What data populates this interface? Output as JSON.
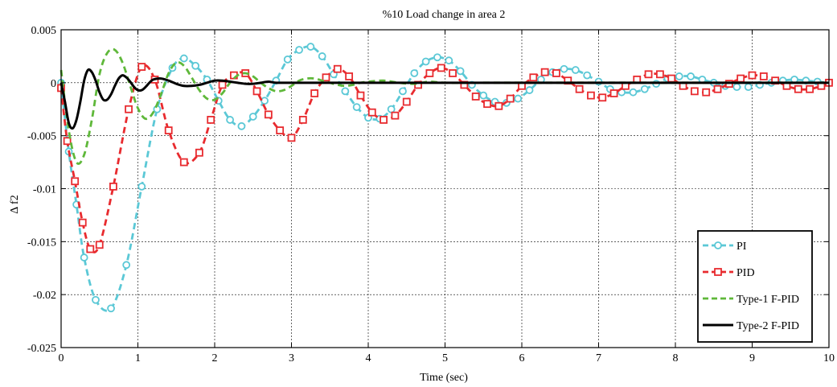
{
  "chart_data": {
    "type": "line",
    "title": "%10 Load change in area 2",
    "xlabel": "Time (sec)",
    "ylabel": "Δ f2",
    "xlim": [
      0,
      10
    ],
    "ylim": [
      -0.025,
      0.005
    ],
    "grid": true,
    "legend_position": "bottom-right",
    "x_ticks": [
      0,
      1,
      2,
      3,
      4,
      5,
      6,
      7,
      8,
      9,
      10
    ],
    "x_tick_labels": [
      "0",
      "1",
      "2",
      "3",
      "4",
      "5",
      "6",
      "7",
      "8",
      "9",
      "10"
    ],
    "y_ticks": [
      0.005,
      0,
      -0.005,
      -0.01,
      -0.015,
      -0.02,
      -0.025
    ],
    "y_tick_labels": [
      "0.005",
      "0",
      "-0.005",
      "-0.01",
      "-0.015",
      "-0.02",
      "-0.025"
    ],
    "series": [
      {
        "name": "PI",
        "color": "#5bc8d6",
        "line": "dashed",
        "marker": "circle",
        "x": [
          0,
          0.1,
          0.2,
          0.3,
          0.45,
          0.65,
          0.85,
          1.05,
          1.25,
          1.45,
          1.6,
          1.75,
          1.9,
          2.05,
          2.2,
          2.35,
          2.5,
          2.65,
          2.8,
          2.95,
          3.1,
          3.25,
          3.4,
          3.55,
          3.7,
          3.85,
          4.0,
          4.15,
          4.3,
          4.45,
          4.6,
          4.75,
          4.9,
          5.05,
          5.2,
          5.35,
          5.5,
          5.65,
          5.8,
          5.95,
          6.1,
          6.25,
          6.4,
          6.55,
          6.7,
          6.85,
          7.0,
          7.15,
          7.3,
          7.45,
          7.6,
          7.75,
          7.9,
          8.05,
          8.2,
          8.35,
          8.5,
          8.65,
          8.8,
          8.95,
          9.1,
          9.25,
          9.4,
          9.55,
          9.7,
          9.85,
          10.0
        ],
        "y": [
          0,
          -0.0065,
          -0.0115,
          -0.0165,
          -0.0205,
          -0.0213,
          -0.0172,
          -0.0098,
          -0.0025,
          0.0014,
          0.0023,
          0.0016,
          0.0003,
          -0.0017,
          -0.0035,
          -0.0041,
          -0.0032,
          -0.0017,
          0.0002,
          0.0022,
          0.0031,
          0.0034,
          0.0025,
          0.0008,
          -0.0008,
          -0.0023,
          -0.0033,
          -0.0034,
          -0.0025,
          -0.0008,
          0.0009,
          0.002,
          0.0024,
          0.0021,
          0.0011,
          -0.0002,
          -0.0012,
          -0.0018,
          -0.0019,
          -0.0015,
          -0.0007,
          0.0003,
          0.001,
          0.0013,
          0.0012,
          0.0007,
          0.0001,
          -0.0006,
          -0.0009,
          -0.0009,
          -0.0006,
          -0.0001,
          0.0004,
          0.0006,
          0.0006,
          0.0003,
          0,
          -0.0003,
          -0.0004,
          -0.0004,
          -0.0002,
          0,
          0.0002,
          0.0003,
          0.0002,
          0.0001,
          0
        ]
      },
      {
        "name": "PID",
        "color": "#e82b2f",
        "line": "dashed",
        "marker": "square",
        "x": [
          0,
          0.08,
          0.18,
          0.28,
          0.38,
          0.5,
          0.68,
          0.88,
          1.05,
          1.22,
          1.4,
          1.6,
          1.8,
          1.95,
          2.1,
          2.25,
          2.4,
          2.55,
          2.7,
          2.85,
          3.0,
          3.15,
          3.3,
          3.45,
          3.6,
          3.75,
          3.9,
          4.05,
          4.2,
          4.35,
          4.5,
          4.65,
          4.8,
          4.95,
          5.1,
          5.25,
          5.4,
          5.55,
          5.7,
          5.85,
          6.0,
          6.15,
          6.3,
          6.45,
          6.6,
          6.75,
          6.9,
          7.05,
          7.2,
          7.35,
          7.5,
          7.65,
          7.8,
          7.95,
          8.1,
          8.25,
          8.4,
          8.55,
          8.7,
          8.85,
          9.0,
          9.15,
          9.3,
          9.45,
          9.6,
          9.75,
          9.9,
          10.0
        ],
        "y": [
          -0.0005,
          -0.0055,
          -0.0093,
          -0.0132,
          -0.0157,
          -0.0153,
          -0.0098,
          -0.0025,
          0.0015,
          0.0003,
          -0.0045,
          -0.0075,
          -0.0066,
          -0.0035,
          -0.0002,
          0.0007,
          0.0009,
          -0.0008,
          -0.003,
          -0.0045,
          -0.0052,
          -0.0035,
          -0.001,
          0.0005,
          0.0013,
          0.0006,
          -0.0012,
          -0.0028,
          -0.0035,
          -0.0031,
          -0.0018,
          -0.0002,
          0.0009,
          0.0014,
          0.0009,
          -0.0002,
          -0.0013,
          -0.002,
          -0.0022,
          -0.0015,
          -0.0003,
          0.0005,
          0.001,
          0.0009,
          0.0002,
          -0.0006,
          -0.0012,
          -0.0014,
          -0.001,
          -0.0003,
          0.0003,
          0.0008,
          0.0008,
          0.0004,
          -0.0003,
          -0.0008,
          -0.0009,
          -0.0006,
          -0.0001,
          0.0004,
          0.0007,
          0.0006,
          0.0002,
          -0.0003,
          -0.0006,
          -0.0006,
          -0.0003,
          0
        ]
      },
      {
        "name": "Type-1 F-PID",
        "color": "#5fb83a",
        "line": "dashed",
        "marker": "none",
        "x": [
          0,
          0.1,
          0.2,
          0.3,
          0.4,
          0.5,
          0.6,
          0.7,
          0.8,
          0.9,
          1.0,
          1.1,
          1.2,
          1.3,
          1.4,
          1.5,
          1.6,
          1.7,
          1.8,
          1.9,
          2.0,
          2.1,
          2.2,
          2.3,
          2.4,
          2.5,
          2.6,
          2.7,
          2.8,
          2.9,
          3.0,
          3.1,
          3.2,
          3.3,
          3.4,
          3.5,
          3.6,
          3.7,
          3.8,
          3.9,
          4.0,
          4.2,
          4.4,
          4.6,
          4.8,
          5.0,
          5.5,
          6.0,
          7.0,
          8.0,
          9.0,
          10.0
        ],
        "y": [
          0.0012,
          -0.0045,
          -0.0075,
          -0.0068,
          -0.0035,
          0.0008,
          0.0028,
          0.0031,
          0.0019,
          -0.0003,
          -0.0024,
          -0.0034,
          -0.0028,
          -0.0011,
          0.0009,
          0.0019,
          0.0016,
          0.0005,
          -0.0007,
          -0.0015,
          -0.0016,
          -0.001,
          0,
          0.0007,
          0.0009,
          0.0006,
          0,
          -0.0005,
          -0.0008,
          -0.0007,
          -0.0003,
          0.0002,
          0.0004,
          0.0004,
          0.0002,
          0,
          -0.0002,
          -0.0003,
          -0.0002,
          0,
          0.0001,
          0.0002,
          0,
          -0.0001,
          0.0001,
          0,
          0,
          0,
          0,
          0,
          0,
          0
        ]
      },
      {
        "name": "Type-2 F-PID",
        "color": "#000000",
        "line": "solid",
        "marker": "none",
        "x": [
          0,
          0.05,
          0.1,
          0.15,
          0.2,
          0.25,
          0.3,
          0.35,
          0.4,
          0.45,
          0.5,
          0.55,
          0.6,
          0.65,
          0.7,
          0.75,
          0.8,
          0.85,
          0.9,
          0.95,
          1.0,
          1.05,
          1.1,
          1.15,
          1.2,
          1.3,
          1.4,
          1.5,
          1.6,
          1.7,
          1.8,
          1.9,
          2.0,
          2.1,
          2.2,
          2.3,
          2.4,
          2.5,
          2.6,
          2.7,
          2.8,
          3.0,
          3.5,
          4.0,
          5.0,
          6.0,
          7.0,
          8.0,
          9.0,
          10.0
        ],
        "y": [
          0,
          -0.0018,
          -0.0038,
          -0.0043,
          -0.0035,
          -0.0018,
          0.0002,
          0.0012,
          0.001,
          0.0002,
          -0.0009,
          -0.0016,
          -0.0016,
          -0.0011,
          -0.0003,
          0.0004,
          0.0007,
          0.0005,
          0.0001,
          -0.0004,
          -0.0007,
          -0.0007,
          -0.0004,
          0,
          0.0003,
          0.0004,
          0.0002,
          -0.0001,
          -0.0003,
          -0.0003,
          -0.0002,
          0,
          0.0002,
          0.0002,
          0.0001,
          0,
          -0.0001,
          -0.0001,
          0,
          0.0001,
          0,
          0,
          0,
          0,
          0,
          0,
          0,
          0,
          0,
          0
        ]
      }
    ]
  }
}
